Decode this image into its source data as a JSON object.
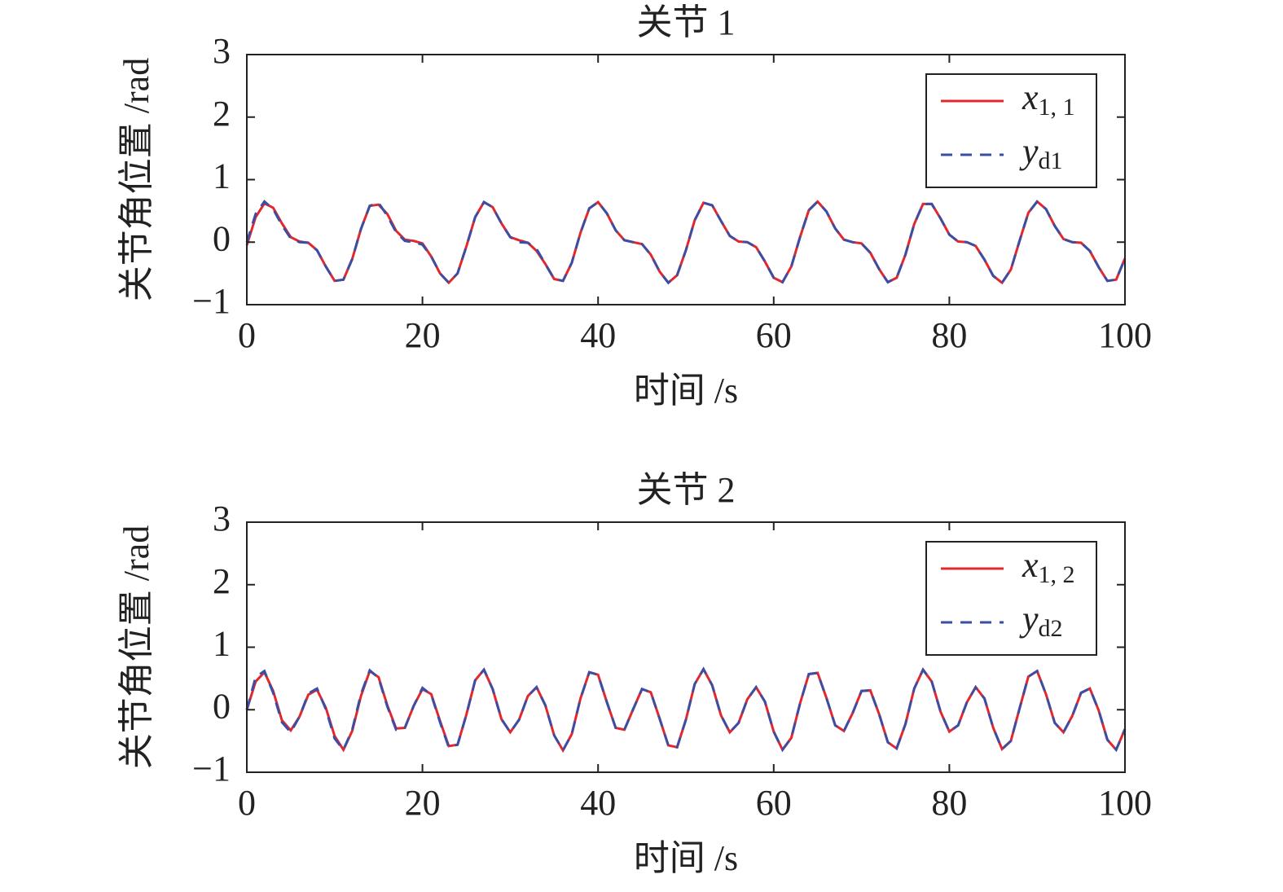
{
  "chart_data": [
    {
      "type": "line",
      "title": "关节 1",
      "xlabel": "时间 /s",
      "ylabel": "关节角位置 /rad",
      "xlim": [
        0,
        100
      ],
      "ylim": [
        -1,
        3
      ],
      "xticks": [
        0,
        20,
        40,
        60,
        80,
        100
      ],
      "yticks": [
        {
          "value": -1,
          "label": "−1"
        },
        0,
        1,
        2,
        3
      ],
      "legend": "upper right",
      "x": [
        0,
        1,
        2,
        3,
        4,
        5,
        6,
        7,
        8,
        9,
        10,
        11,
        12,
        13,
        14,
        15,
        16,
        17,
        18,
        19,
        20,
        21,
        22,
        23,
        24,
        25,
        26,
        27,
        28,
        29,
        30,
        31,
        32,
        33,
        34,
        35,
        36,
        37,
        38,
        39,
        40,
        41,
        42,
        43,
        44,
        45,
        46,
        47,
        48,
        49,
        50,
        51,
        52,
        53,
        54,
        55,
        56,
        57,
        58,
        59,
        60,
        61,
        62,
        63,
        64,
        65,
        66,
        67,
        68,
        69,
        70,
        71,
        72,
        73,
        74,
        75,
        76,
        77,
        78,
        79,
        80,
        81,
        82,
        83,
        84,
        85,
        86,
        87,
        88,
        89,
        90,
        91,
        92,
        93,
        94,
        95,
        96,
        97,
        98,
        99,
        100
      ],
      "series": [
        {
          "name": "x1, 1",
          "color": "#e0282e",
          "linestyle": "solid",
          "values": [
            -0.05,
            0.4,
            0.62,
            0.55,
            0.3,
            0.08,
            0.01,
            -0.01,
            -0.13,
            -0.39,
            -0.62,
            -0.6,
            -0.27,
            0.21,
            0.58,
            0.6,
            0.45,
            0.18,
            0.04,
            0.02,
            -0.02,
            -0.23,
            -0.5,
            -0.65,
            -0.5,
            -0.07,
            0.4,
            0.64,
            0.56,
            0.3,
            0.08,
            0.03,
            -0.01,
            -0.14,
            -0.35,
            -0.59,
            -0.62,
            -0.33,
            0.15,
            0.54,
            0.64,
            0.46,
            0.19,
            0.03,
            0.0,
            -0.03,
            -0.2,
            -0.47,
            -0.65,
            -0.53,
            -0.13,
            0.35,
            0.63,
            0.59,
            0.34,
            0.1,
            0.01,
            0.0,
            -0.08,
            -0.31,
            -0.57,
            -0.64,
            -0.39,
            0.08,
            0.51,
            0.65,
            0.49,
            0.22,
            0.04,
            0.0,
            -0.02,
            -0.17,
            -0.43,
            -0.64,
            -0.57,
            -0.2,
            0.29,
            0.61,
            0.61,
            0.38,
            0.12,
            0.01,
            0.0,
            -0.06,
            -0.28,
            -0.54,
            -0.65,
            -0.44,
            0.02,
            0.47,
            0.65,
            0.53,
            0.26,
            0.05,
            0.0,
            -0.01,
            -0.14,
            -0.4,
            -0.62,
            -0.6,
            -0.26
          ]
        },
        {
          "name": "yd1",
          "color": "#3b4ea3",
          "linestyle": "dashed",
          "values": [
            0,
            0.45,
            0.65,
            0.53,
            0.27,
            0.06,
            0.0,
            -0.01,
            -0.13,
            -0.39,
            -0.62,
            -0.6,
            -0.27,
            0.21,
            0.58,
            0.63,
            0.42,
            0.16,
            0.02,
            0.0,
            -0.04,
            -0.23,
            -0.5,
            -0.65,
            -0.5,
            -0.07,
            0.4,
            0.64,
            0.56,
            0.3,
            0.08,
            0.0,
            -0.01,
            -0.11,
            -0.35,
            -0.59,
            -0.62,
            -0.33,
            0.15,
            0.54,
            0.64,
            0.46,
            0.19,
            0.03,
            0.0,
            -0.03,
            -0.2,
            -0.47,
            -0.65,
            -0.53,
            -0.13,
            0.35,
            0.63,
            0.59,
            0.34,
            0.1,
            0.01,
            0.0,
            -0.08,
            -0.31,
            -0.57,
            -0.64,
            -0.39,
            0.08,
            0.51,
            0.65,
            0.49,
            0.22,
            0.04,
            0.0,
            -0.02,
            -0.17,
            -0.43,
            -0.64,
            -0.57,
            -0.2,
            0.29,
            0.61,
            0.61,
            0.38,
            0.12,
            0.01,
            0.0,
            -0.06,
            -0.28,
            -0.54,
            -0.65,
            -0.44,
            0.02,
            0.47,
            0.65,
            0.53,
            0.26,
            0.05,
            0.0,
            -0.01,
            -0.14,
            -0.4,
            -0.62,
            -0.6,
            -0.26
          ]
        }
      ]
    },
    {
      "type": "line",
      "title": "关节 2",
      "xlabel": "时间 /s",
      "ylabel": "关节角位置 /rad",
      "xlim": [
        0,
        100
      ],
      "ylim": [
        -1,
        3
      ],
      "xticks": [
        0,
        20,
        40,
        60,
        80,
        100
      ],
      "yticks": [
        {
          "value": -1,
          "label": "−1"
        },
        0,
        1,
        2,
        3
      ],
      "legend": "upper right",
      "x": [
        0,
        1,
        2,
        3,
        4,
        5,
        6,
        7,
        8,
        9,
        10,
        11,
        12,
        13,
        14,
        15,
        16,
        17,
        18,
        19,
        20,
        21,
        22,
        23,
        24,
        25,
        26,
        27,
        28,
        29,
        30,
        31,
        32,
        33,
        34,
        35,
        36,
        37,
        38,
        39,
        40,
        41,
        42,
        43,
        44,
        45,
        46,
        47,
        48,
        49,
        50,
        51,
        52,
        53,
        54,
        55,
        56,
        57,
        58,
        59,
        60,
        61,
        62,
        63,
        64,
        65,
        66,
        67,
        68,
        69,
        70,
        71,
        72,
        73,
        74,
        75,
        76,
        77,
        78,
        79,
        80,
        81,
        82,
        83,
        84,
        85,
        86,
        87,
        88,
        89,
        90,
        91,
        92,
        93,
        94,
        95,
        96,
        97,
        98,
        99,
        100
      ],
      "series": [
        {
          "name": "x1, 2",
          "color": "#e0282e",
          "linestyle": "solid",
          "values": [
            0.0,
            0.45,
            0.6,
            0.3,
            -0.17,
            -0.33,
            -0.11,
            0.24,
            0.32,
            0.03,
            -0.42,
            -0.64,
            -0.34,
            0.22,
            0.62,
            0.52,
            0.07,
            -0.3,
            -0.29,
            0.06,
            0.33,
            0.25,
            -0.18,
            -0.58,
            -0.56,
            -0.08,
            0.47,
            0.64,
            0.33,
            -0.15,
            -0.36,
            -0.16,
            0.22,
            0.36,
            0.07,
            -0.41,
            -0.65,
            -0.39,
            0.18,
            0.6,
            0.56,
            0.12,
            -0.29,
            -0.32,
            0.01,
            0.33,
            0.28,
            -0.14,
            -0.57,
            -0.6,
            -0.16,
            0.41,
            0.65,
            0.39,
            -0.09,
            -0.36,
            -0.21,
            0.17,
            0.36,
            0.13,
            -0.35,
            -0.64,
            -0.45,
            0.1,
            0.57,
            0.59,
            0.19,
            -0.25,
            -0.34,
            -0.05,
            0.3,
            0.31,
            -0.07,
            -0.52,
            -0.62,
            -0.23,
            0.34,
            0.64,
            0.45,
            -0.03,
            -0.35,
            -0.25,
            0.12,
            0.36,
            0.18,
            -0.29,
            -0.63,
            -0.5,
            0.02,
            0.53,
            0.62,
            0.25,
            -0.21,
            -0.36,
            -0.1,
            0.27,
            0.34,
            -0.01,
            -0.48,
            -0.64,
            -0.31
          ]
        },
        {
          "name": "yd2",
          "color": "#3b4ea3",
          "linestyle": "dashed",
          "values": [
            0,
            0.52,
            0.62,
            0.27,
            -0.2,
            -0.36,
            -0.11,
            0.26,
            0.34,
            0.01,
            -0.46,
            -0.64,
            -0.32,
            0.25,
            0.63,
            0.51,
            0.05,
            -0.32,
            -0.29,
            0.06,
            0.35,
            0.24,
            -0.2,
            -0.6,
            -0.56,
            -0.08,
            0.47,
            0.64,
            0.33,
            -0.15,
            -0.36,
            -0.16,
            0.22,
            0.36,
            0.07,
            -0.41,
            -0.65,
            -0.39,
            0.18,
            0.6,
            0.56,
            0.12,
            -0.29,
            -0.32,
            0.01,
            0.33,
            0.28,
            -0.14,
            -0.57,
            -0.6,
            -0.16,
            0.41,
            0.65,
            0.39,
            -0.09,
            -0.36,
            -0.21,
            0.17,
            0.36,
            0.13,
            -0.35,
            -0.64,
            -0.45,
            0.1,
            0.57,
            0.59,
            0.19,
            -0.25,
            -0.34,
            -0.05,
            0.3,
            0.31,
            -0.07,
            -0.52,
            -0.62,
            -0.23,
            0.34,
            0.64,
            0.45,
            -0.03,
            -0.35,
            -0.25,
            0.12,
            0.36,
            0.18,
            -0.29,
            -0.63,
            -0.5,
            0.02,
            0.53,
            0.62,
            0.25,
            -0.21,
            -0.36,
            -0.1,
            0.27,
            0.34,
            -0.01,
            -0.48,
            -0.64,
            -0.31
          ]
        }
      ]
    }
  ]
}
